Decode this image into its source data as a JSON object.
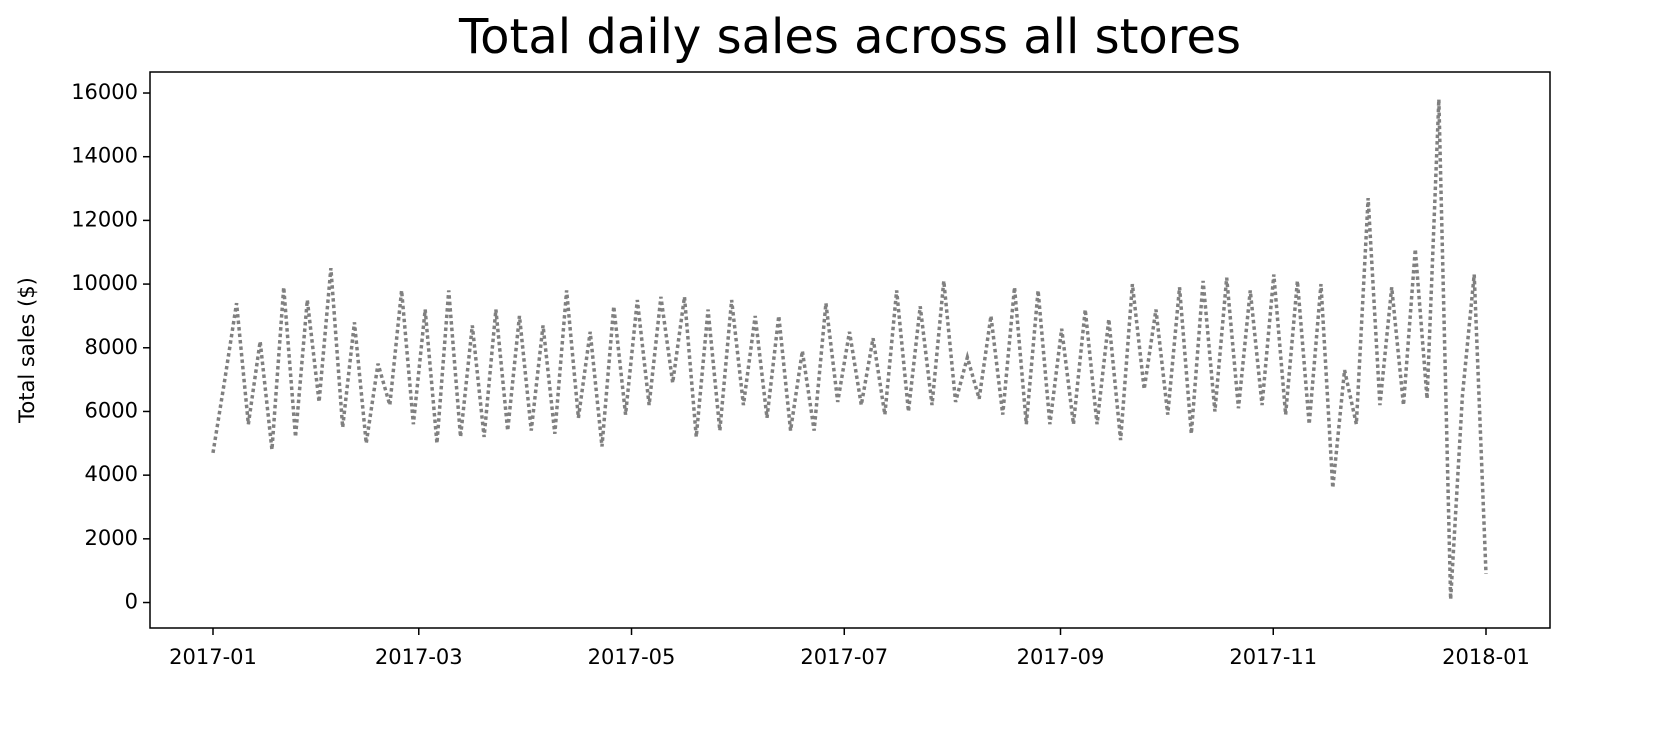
{
  "chart_data": {
    "type": "line",
    "title": "Total daily sales across all stores",
    "y_label": "Total sales ($)",
    "series": [
      {
        "color": "#808080",
        "line_style": "dotted",
        "values": [
          4700,
          7000,
          9400,
          5600,
          8200,
          4800,
          9900,
          5200,
          9500,
          6300,
          10500,
          5500,
          8800,
          5000,
          7500,
          6200,
          9800,
          5600,
          9200,
          5000,
          9800,
          5200,
          8700,
          5200,
          9200,
          5400,
          9000,
          5400,
          8700,
          5300,
          9800,
          5800,
          8500,
          4900,
          9300,
          5900,
          9500,
          6200,
          9600,
          6900,
          9600,
          5200,
          9200,
          5400,
          9500,
          6200,
          9000,
          5800,
          9000,
          5400,
          7900,
          5400,
          9400,
          6300,
          8500,
          6200,
          8300,
          5900,
          9800,
          6000,
          9300,
          6200,
          10100,
          6300,
          7700,
          6400,
          9000,
          5900,
          9900,
          5600,
          9800,
          5600,
          8600,
          5600,
          9200,
          5600,
          8900,
          5100,
          10000,
          6700,
          9200,
          5900,
          9900,
          5300,
          10100,
          6000,
          10200,
          6100,
          9800,
          6200,
          10300,
          5900,
          10100,
          5600,
          10000,
          3600,
          7300,
          5600,
          12700,
          6200,
          9900,
          6200,
          11100,
          6400,
          15800,
          100,
          6500,
          10300,
          900
        ]
      }
    ],
    "xlim": [
      "2017-01",
      "2018-01"
    ],
    "xticks": [
      "2017-01",
      "2017-03",
      "2017-05",
      "2017-07",
      "2017-09",
      "2017-11",
      "2018-01"
    ],
    "ylim": [
      -800,
      16660
    ],
    "yticks": [
      0,
      2000,
      4000,
      6000,
      8000,
      10000,
      12000,
      14000,
      16000
    ],
    "grid": false
  }
}
